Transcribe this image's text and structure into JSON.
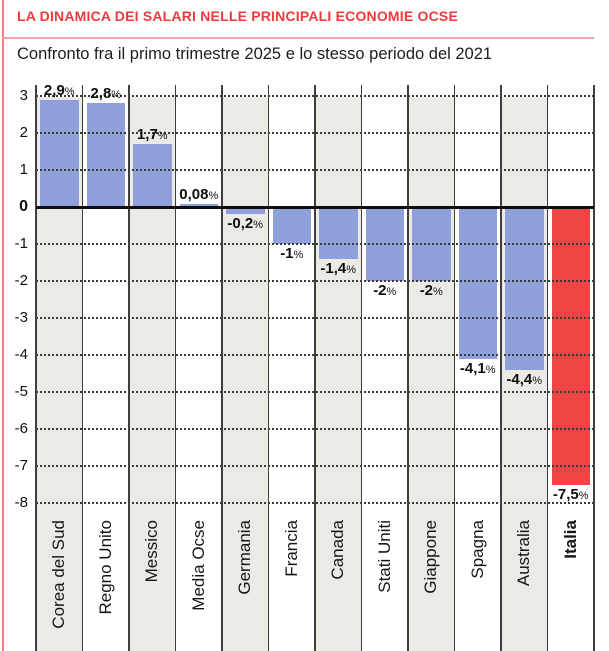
{
  "header": {
    "title": "LA DINAMICA DEI SALARI NELLE PRINCIPALI ECONOMIE OCSE",
    "subtitle": "Confronto fra il primo trimestre 2025 e lo stesso periodo del 2021"
  },
  "chart_data": {
    "type": "bar",
    "title": "LA DINAMICA DEI SALARI NELLE PRINCIPALI ECONOMIE OCSE",
    "subtitle": "Confronto fra il primo trimestre 2025 e lo stesso periodo del 2021",
    "unit": "%",
    "categories": [
      "Corea del Sud",
      "Regno Unito",
      "Messico",
      "Media Ocse",
      "Germania",
      "Francia",
      "Canada",
      "Stati Uniti",
      "Giappone",
      "Spagna",
      "Australia",
      "Italia"
    ],
    "values": [
      2.9,
      2.8,
      1.7,
      0.08,
      -0.2,
      -1,
      -1.4,
      -2,
      -2,
      -4.1,
      -4.4,
      -7.5
    ],
    "value_labels": [
      "2,9%",
      "2,8%",
      "1,7%",
      "0,08%",
      "-0,2%",
      "-1%",
      "-1,4%",
      "-2%",
      "-2%",
      "-4,1%",
      "-4,4%",
      "-7,5%"
    ],
    "highlight_category": "Italia",
    "highlight_value_label": "-7,5%",
    "y_ticks": [
      3,
      2,
      1,
      0,
      -1,
      -2,
      -3,
      -4,
      -5,
      -6,
      -7,
      -8
    ],
    "ylim": [
      -8.4,
      3.3
    ],
    "grid": "horizontal-dotted",
    "legend": "none",
    "colors": {
      "bar": "#8fa0db",
      "highlight_bar": "#f04545",
      "band_shade": "#eceae5",
      "band_plain": "#ffffff",
      "gridline": "#3a3a3a",
      "zero_line": "#0d0d0d",
      "separator": "#3e3e3e",
      "title_red": "#ee3a3c",
      "rule_pink": "#f7a3a3",
      "border_red": "#f07e7e",
      "text": "#111111"
    }
  }
}
